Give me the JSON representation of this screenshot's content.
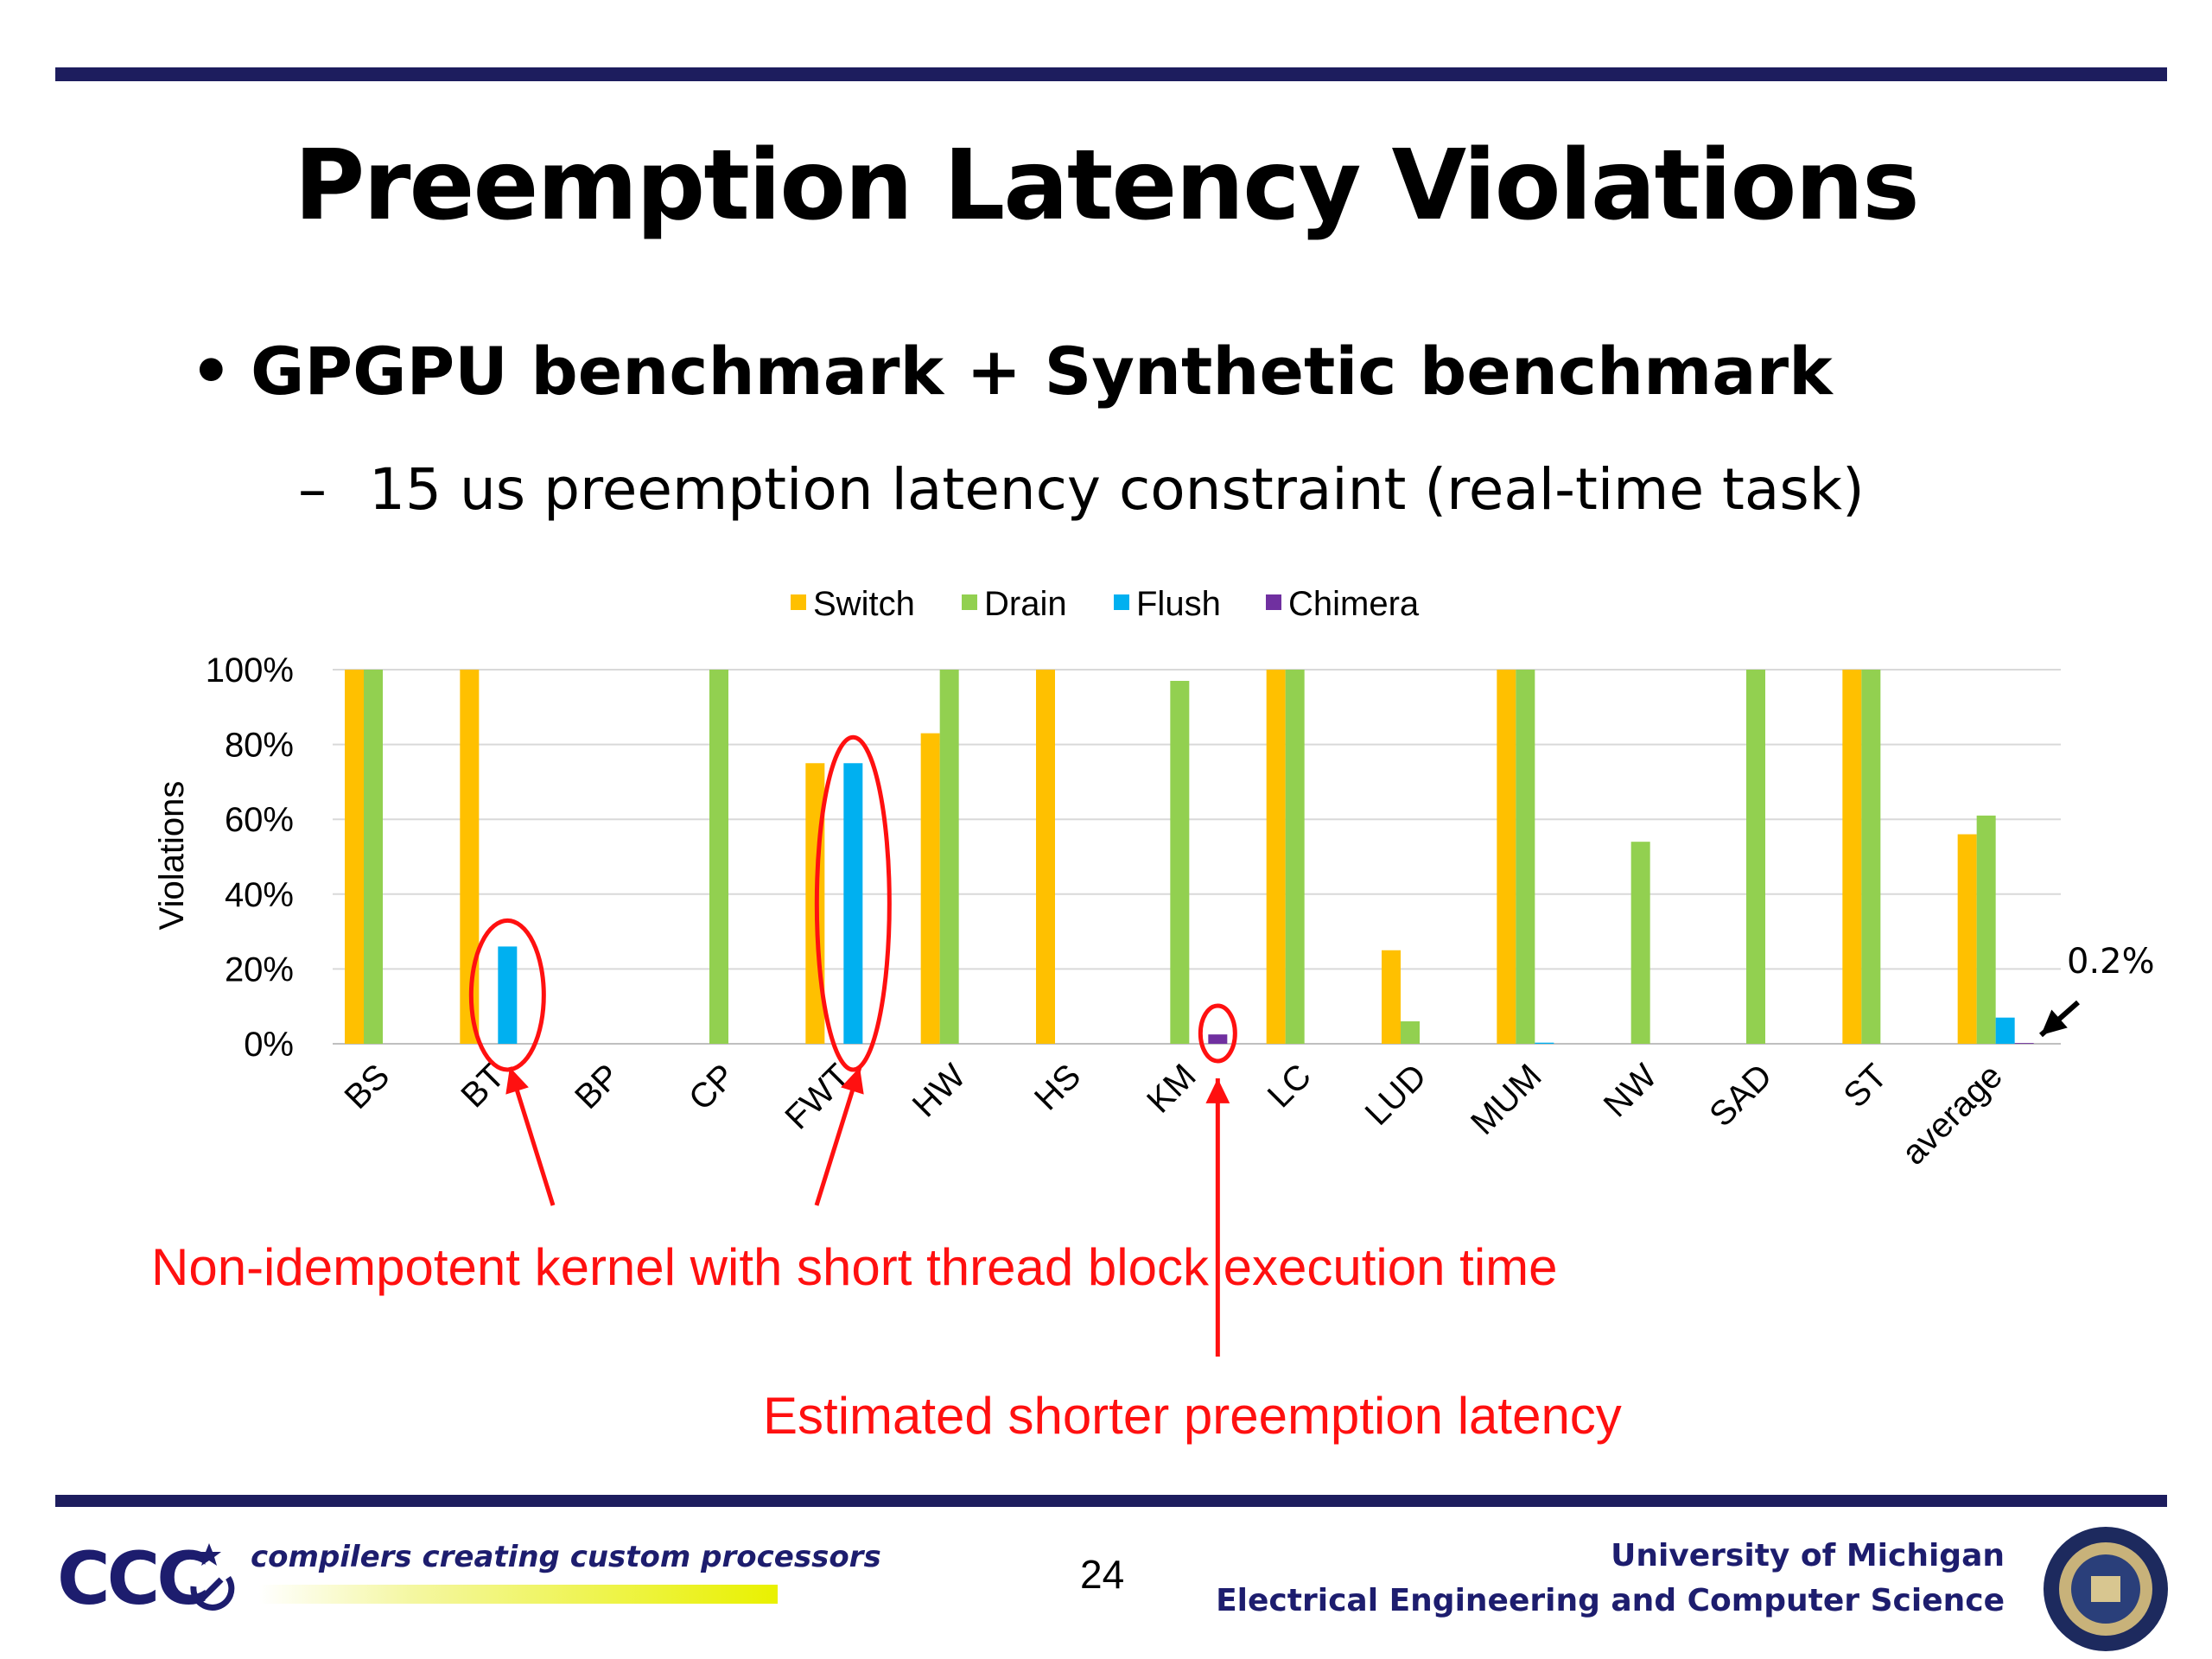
{
  "slide": {
    "title": "Preemption Latency Violations",
    "bullet": "GPGPU benchmark + Synthetic benchmark",
    "sub_bullet": "15 us preemption latency constraint (real-time task)"
  },
  "annotations": {
    "callout_small": "0.2%",
    "note_non_idempotent": "Non-idempotent kernel with short thread block execution time",
    "note_estimated": "Estimated shorter preemption latency"
  },
  "footer": {
    "logo_text": "CCC",
    "tagline": "compilers creating custom processors",
    "page_number": "24",
    "university": "University of Michigan",
    "department": "Electrical Engineering and Computer Science"
  },
  "colors": {
    "rule": "#1d1d5e",
    "annotation": "#ff1010",
    "Switch": "#ffc000",
    "Drain": "#92d050",
    "Flush": "#00b0f0",
    "Chimera": "#7030a0"
  },
  "chart_data": {
    "type": "bar",
    "ylabel": "Violations",
    "ylim": [
      0,
      100
    ],
    "yticks": [
      "0%",
      "20%",
      "40%",
      "60%",
      "80%",
      "100%"
    ],
    "legend": "top",
    "grid": true,
    "categories": [
      "BS",
      "BT",
      "BP",
      "CP",
      "FWT",
      "HW",
      "HS",
      "KM",
      "LC",
      "LUD",
      "MUM",
      "NW",
      "SAD",
      "ST",
      "average"
    ],
    "series": [
      {
        "name": "Switch",
        "values": [
          100,
          100,
          0,
          0,
          75,
          83,
          100,
          0,
          100,
          25,
          100,
          0,
          0,
          100,
          56
        ]
      },
      {
        "name": "Drain",
        "values": [
          100,
          0,
          0,
          100,
          0,
          100,
          0,
          97,
          100,
          6,
          100,
          54,
          100,
          100,
          61
        ]
      },
      {
        "name": "Flush",
        "values": [
          0,
          26,
          0,
          0,
          75,
          0,
          0,
          0,
          0,
          0,
          0.3,
          0,
          0,
          0,
          7
        ]
      },
      {
        "name": "Chimera",
        "values": [
          0,
          0,
          0,
          0,
          0,
          0,
          0,
          2.5,
          0,
          0,
          0,
          0,
          0,
          0,
          0.2
        ]
      }
    ]
  }
}
